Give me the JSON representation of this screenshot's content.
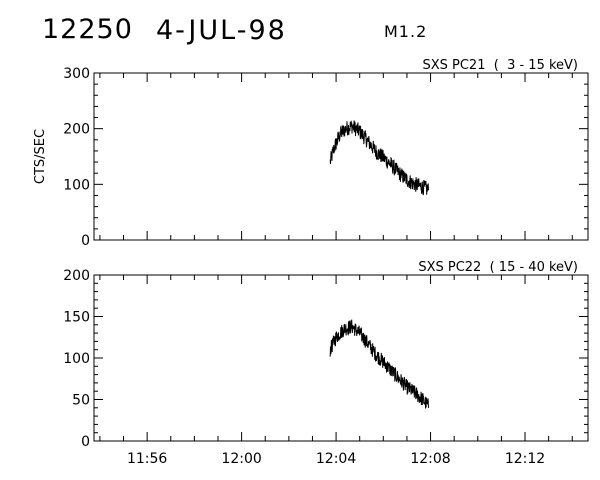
{
  "header": {
    "event_number": "12250",
    "date": "4-JUL-98",
    "flare_class": "M1.2"
  },
  "chart_data": [
    {
      "type": "line",
      "title": "SXS PC21  (  3 - 15 keV)",
      "ylabel": "CTS/SEC",
      "xlabel": "",
      "xlim": [
        "11:53:45",
        "12:14:40"
      ],
      "ylim": [
        0,
        300
      ],
      "yticks": [
        "0",
        "100",
        "200",
        "300"
      ],
      "xticks": [],
      "grid": false,
      "series": [
        {
          "x": [
            "12:03:45",
            "12:03:55",
            "12:04:10",
            "12:04:25",
            "12:04:40",
            "12:05:00",
            "12:05:20",
            "12:05:40",
            "12:06:00",
            "12:06:20",
            "12:06:40",
            "12:07:00",
            "12:07:20",
            "12:07:40",
            "12:07:55"
          ],
          "values": [
            140,
            165,
            190,
            200,
            205,
            195,
            178,
            160,
            148,
            135,
            120,
            108,
            100,
            95,
            90
          ],
          "noise": 14
        }
      ]
    },
    {
      "type": "line",
      "title": "SXS PC22  ( 15 - 40 keV)",
      "ylabel": "",
      "xlabel": "",
      "xlim": [
        "11:53:45",
        "12:14:40"
      ],
      "ylim": [
        0,
        200
      ],
      "yticks": [
        "0",
        "50",
        "100",
        "150",
        "200"
      ],
      "xticks": [
        "11:56",
        "12:00",
        "12:04",
        "12:08",
        "12:12"
      ],
      "grid": false,
      "series": [
        {
          "x": [
            "12:03:45",
            "12:04:00",
            "12:04:20",
            "12:04:40",
            "12:05:00",
            "12:05:20",
            "12:05:40",
            "12:06:00",
            "12:06:20",
            "12:06:40",
            "12:07:00",
            "12:07:20",
            "12:07:40",
            "12:07:55"
          ],
          "values": [
            110,
            125,
            135,
            138,
            130,
            118,
            105,
            95,
            85,
            75,
            65,
            58,
            50,
            42
          ],
          "noise": 9
        }
      ]
    }
  ]
}
